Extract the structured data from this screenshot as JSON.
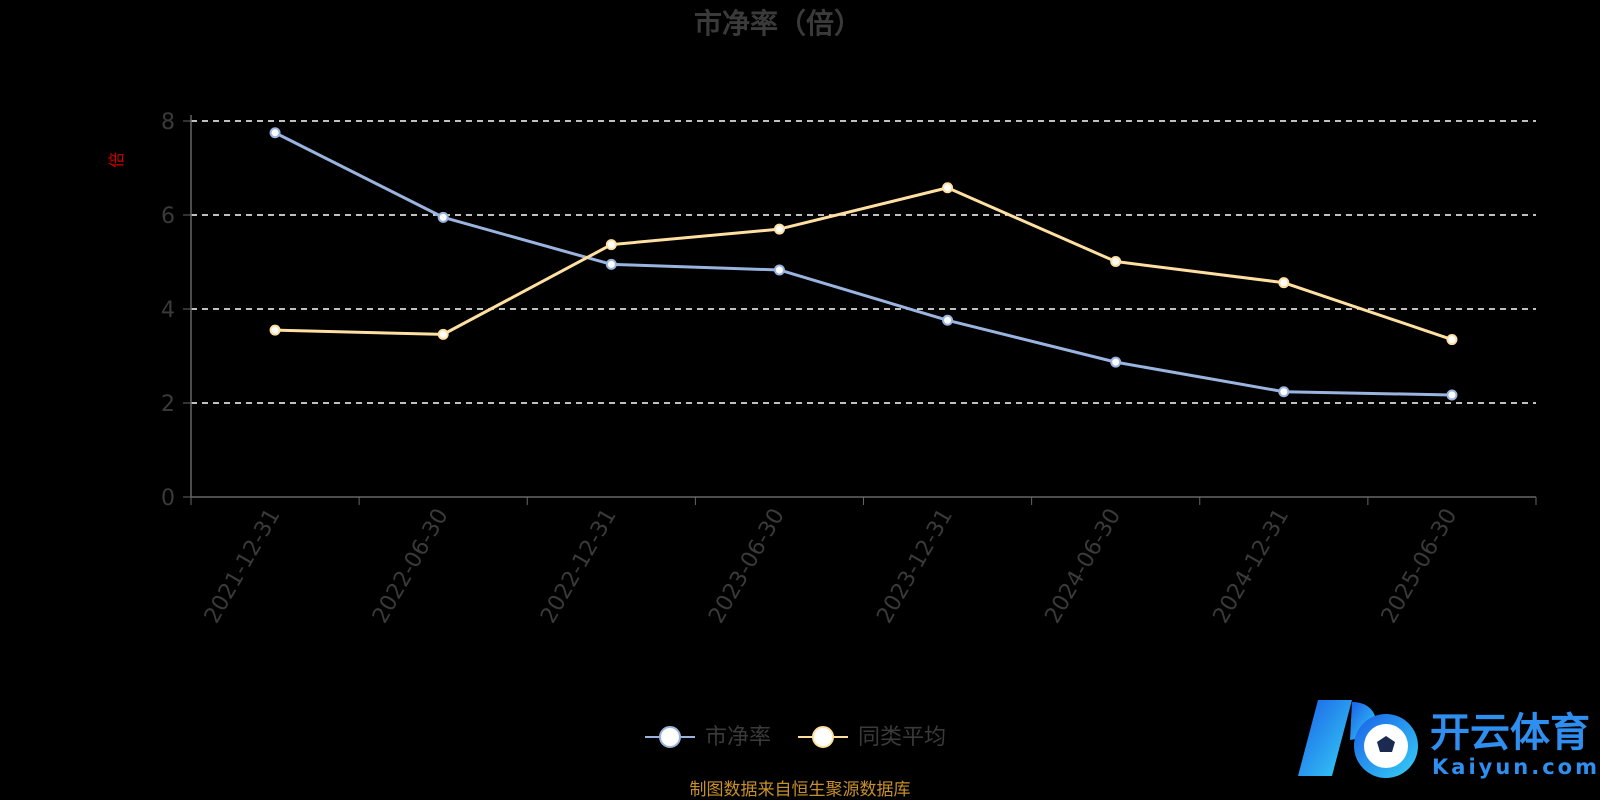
{
  "chart_data": {
    "type": "line",
    "title": "市净率（倍）",
    "ylabel": "倍",
    "xlabel": "",
    "categories": [
      "2021-12-31",
      "2022-06-30",
      "2022-12-31",
      "2023-06-30",
      "2023-12-31",
      "2024-06-30",
      "2024-12-31",
      "2025-06-30"
    ],
    "ylim": [
      0,
      8
    ],
    "yticks": [
      "0",
      "2",
      "4",
      "6",
      "8"
    ],
    "grid": true,
    "legend_position": "bottom",
    "series": [
      {
        "name": "市净率",
        "values": [
          7.75,
          5.95,
          4.95,
          4.83,
          3.76,
          2.87,
          2.24,
          2.17
        ],
        "color": "#9ab4e0"
      },
      {
        "name": "同类平均",
        "values": [
          3.55,
          3.46,
          5.37,
          5.7,
          6.58,
          5.01,
          4.56,
          3.35
        ],
        "color": "#ffe0a0"
      }
    ]
  },
  "source_note": "制图数据来自恒生聚源数据库",
  "watermark": {
    "cn": "开云体育",
    "en": "Kaiyun.com",
    "color_start": "#1a7fe8",
    "color_end": "#33c6f0"
  }
}
